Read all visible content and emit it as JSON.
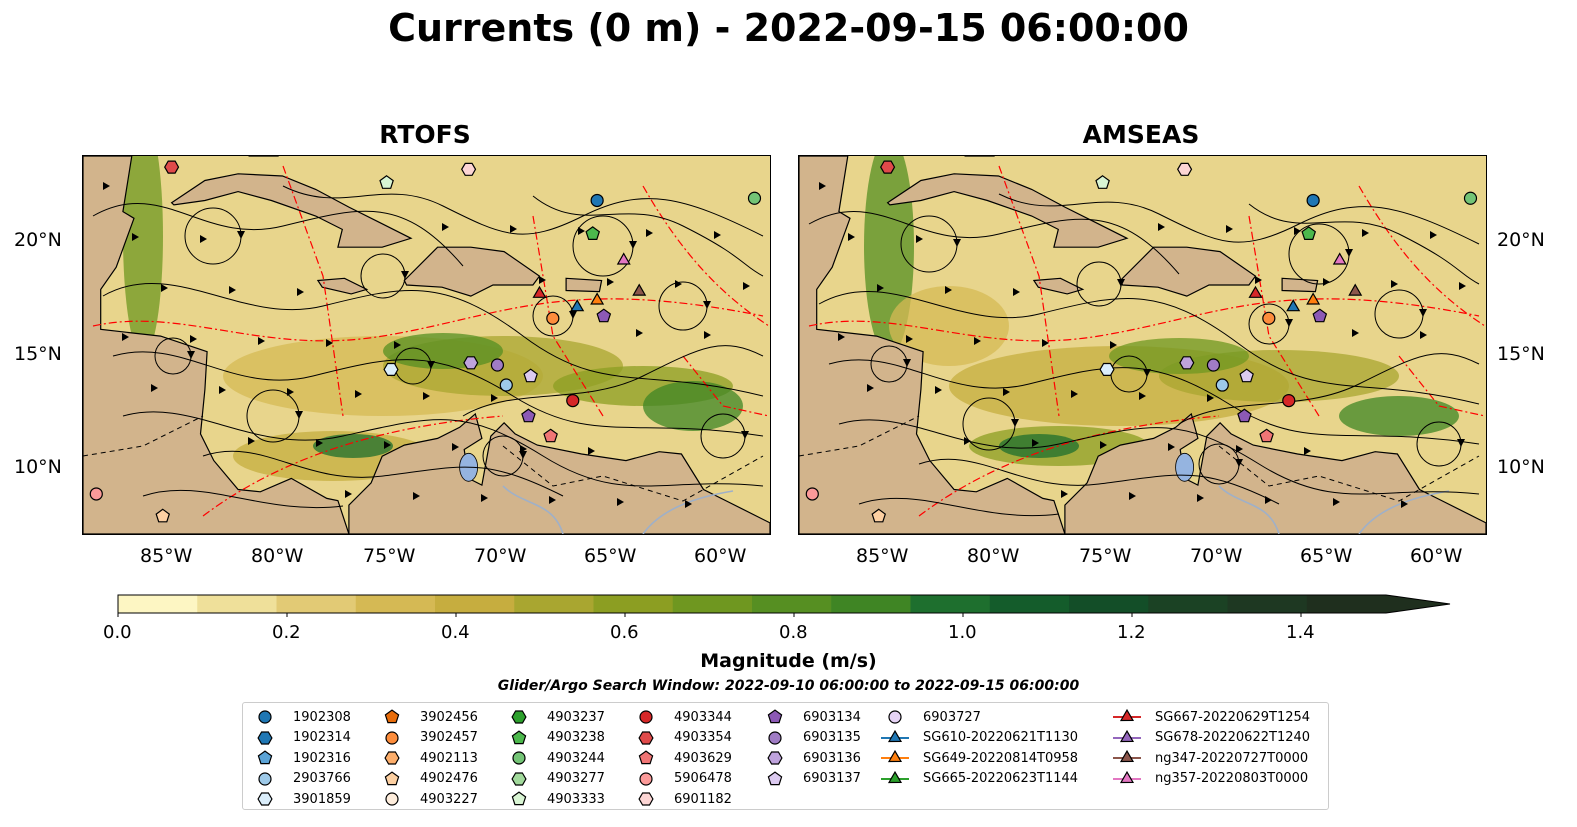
{
  "title": "Currents (0 m) - 2022-09-15 06:00:00",
  "panels": [
    {
      "title": "RTOFS"
    },
    {
      "title": "AMSEAS"
    }
  ],
  "lon_ticks": [
    "85°W",
    "80°W",
    "75°W",
    "70°W",
    "65°W",
    "60°W"
  ],
  "lat_ticks": [
    "20°N",
    "15°N",
    "10°N"
  ],
  "colorbar": {
    "label": "Magnitude (m/s)",
    "ticks": [
      "0.0",
      "0.2",
      "0.4",
      "0.6",
      "0.8",
      "1.0",
      "1.2",
      "1.4"
    ],
    "colors": [
      "#fdf6c3",
      "#efe09a",
      "#e2ca75",
      "#d5b954",
      "#c6ad3f",
      "#a9a630",
      "#8c9e22",
      "#6f9720",
      "#568f22",
      "#3f8524",
      "#1e6f2e",
      "#145c2b",
      "#134e28",
      "#1b4224",
      "#1e3822",
      "#1f2f1e"
    ]
  },
  "search_window": "Glider/Argo Search Window: 2022-09-10 06:00:00 to 2022-09-15 06:00:00",
  "legend": [
    [
      {
        "label": "1902308",
        "marker": "circle",
        "color": "#1f77b4"
      },
      {
        "label": "1902314",
        "marker": "hexagon",
        "color": "#1f77b4"
      },
      {
        "label": "1902316",
        "marker": "pentagon",
        "color": "#5ba3d6"
      },
      {
        "label": "2903766",
        "marker": "circle",
        "color": "#9ecae9"
      },
      {
        "label": "3901859",
        "marker": "hexagon",
        "color": "#dbeefb"
      }
    ],
    [
      {
        "label": "3902456",
        "marker": "pentagon",
        "color": "#e86c0a"
      },
      {
        "label": "3902457",
        "marker": "circle",
        "color": "#fd8d3c"
      },
      {
        "label": "4902113",
        "marker": "hexagon",
        "color": "#fdae6b"
      },
      {
        "label": "4902476",
        "marker": "pentagon",
        "color": "#fdd0a2"
      },
      {
        "label": "4903227",
        "marker": "circle",
        "color": "#feeddc"
      }
    ],
    [
      {
        "label": "4903237",
        "marker": "hexagon",
        "color": "#2ca02c"
      },
      {
        "label": "4903238",
        "marker": "pentagon",
        "color": "#4cb84c"
      },
      {
        "label": "4903244",
        "marker": "circle",
        "color": "#74c476"
      },
      {
        "label": "4903277",
        "marker": "hexagon",
        "color": "#a1d99b"
      },
      {
        "label": "4903333",
        "marker": "pentagon",
        "color": "#d9f5d4"
      }
    ],
    [
      {
        "label": "4903344",
        "marker": "circle",
        "color": "#d62728"
      },
      {
        "label": "4903354",
        "marker": "hexagon",
        "color": "#e04a4a"
      },
      {
        "label": "4903629",
        "marker": "pentagon",
        "color": "#f07575"
      },
      {
        "label": "5906478",
        "marker": "circle",
        "color": "#fb9a99"
      },
      {
        "label": "6901182",
        "marker": "hexagon",
        "color": "#fcd5d4"
      }
    ],
    [
      {
        "label": "6903134",
        "marker": "pentagon",
        "color": "#8c59b5"
      },
      {
        "label": "6903135",
        "marker": "circle",
        "color": "#a07cc5"
      },
      {
        "label": "6903136",
        "marker": "hexagon",
        "color": "#bfa3dd"
      },
      {
        "label": "6903137",
        "marker": "pentagon",
        "color": "#dccaf0"
      }
    ],
    [
      {
        "label": "6903727",
        "marker": "circle",
        "color": "#e6d3f5"
      },
      {
        "label": "SG610-20220621T1130",
        "marker": "triangle",
        "color": "#1f77b4",
        "line": true
      },
      {
        "label": "SG649-20220814T0958",
        "marker": "triangle",
        "color": "#ff7f0e",
        "line": true
      },
      {
        "label": "SG665-20220623T1144",
        "marker": "triangle",
        "color": "#2ca02c",
        "line": true
      }
    ],
    [
      {
        "label": "SG667-20220629T1254",
        "marker": "triangle",
        "color": "#d62728",
        "line": true
      },
      {
        "label": "SG678-20220622T1240",
        "marker": "triangle",
        "color": "#9467bd",
        "line": true
      },
      {
        "label": "ng347-20220727T0000",
        "marker": "triangle",
        "color": "#8c564b",
        "line": true
      },
      {
        "label": "ng357-20220803T0000",
        "marker": "triangle",
        "color": "#e377c2",
        "line": true
      }
    ]
  ]
}
